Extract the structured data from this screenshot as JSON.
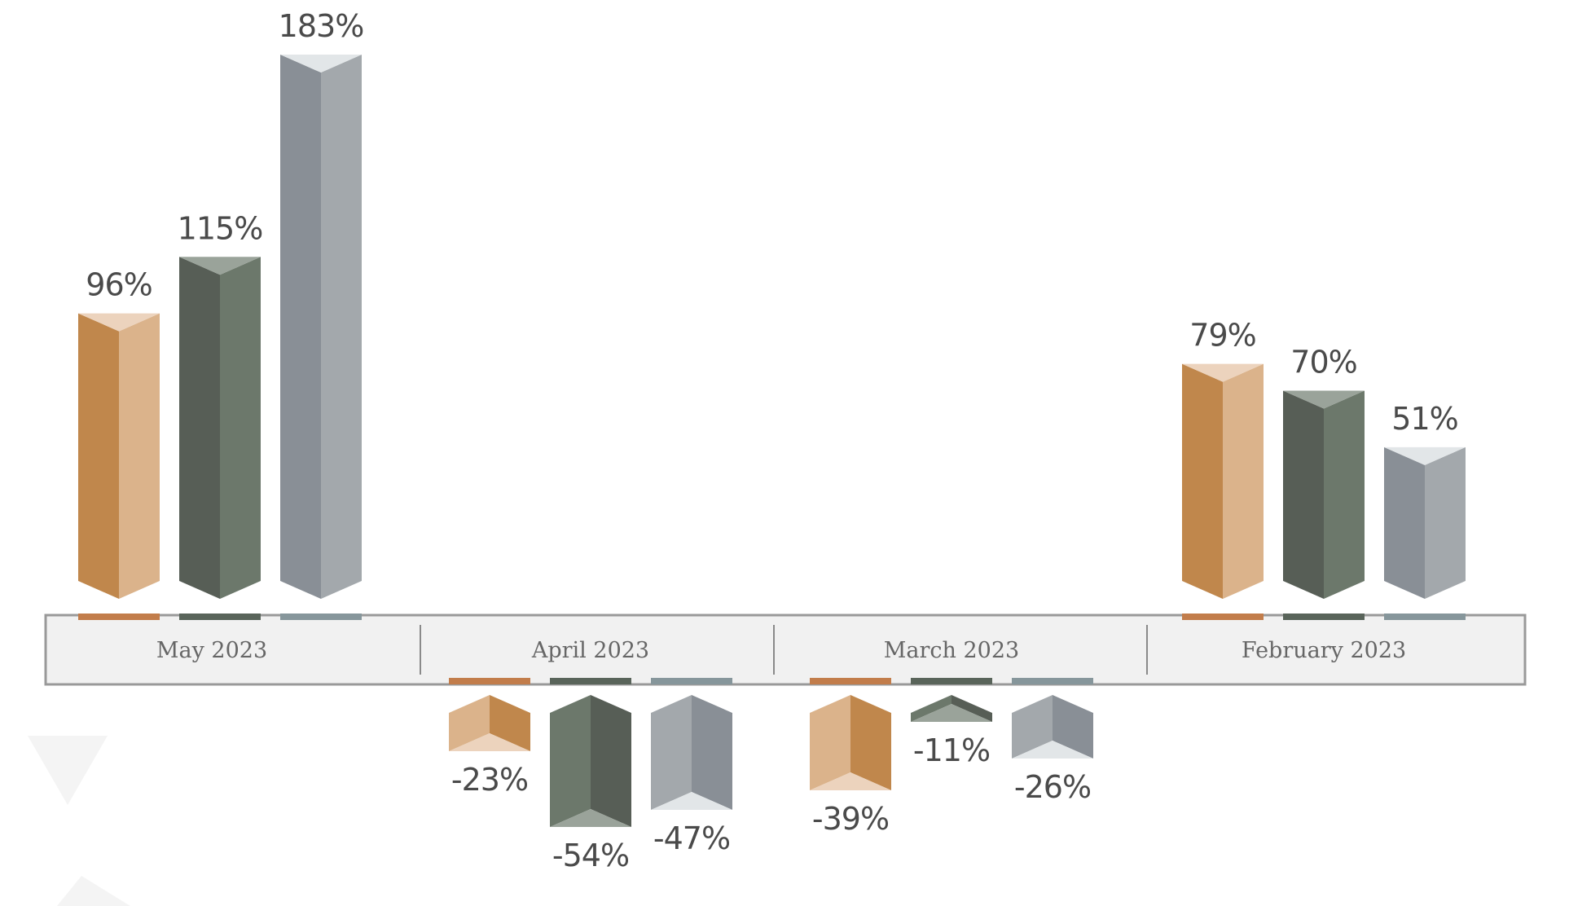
{
  "chart_data": {
    "type": "bar",
    "categories": [
      "May 2023",
      "April 2023",
      "March 2023",
      "February 2023"
    ],
    "series": [
      {
        "values": [
          96,
          -23,
          -39,
          79
        ]
      },
      {
        "values": [
          115,
          -54,
          -11,
          70
        ]
      },
      {
        "values": [
          183,
          -47,
          -26,
          51
        ]
      }
    ],
    "value_suffix": "%",
    "colors": {
      "series": [
        {
          "left": "#c0874c",
          "right": "#dbb38b",
          "cap": "#ecd3bd",
          "base": "#c27d4b"
        },
        {
          "left": "#575e56",
          "right": "#6c786b",
          "cap": "#9aa39a",
          "base": "#59645a"
        },
        {
          "left": "#898f96",
          "right": "#a3a8ac",
          "cap": "#e2e6e8",
          "base": "#86969b"
        }
      ],
      "axis_fill": "#f1f1f1",
      "axis_border": "#999999",
      "label_text": "#4a4a4a"
    },
    "grid": false,
    "legend": "none"
  }
}
